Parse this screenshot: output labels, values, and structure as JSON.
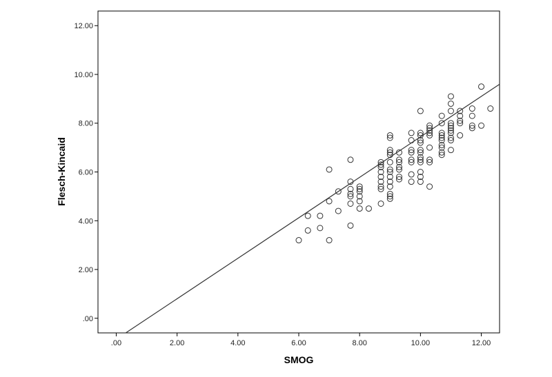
{
  "chart_data": {
    "type": "scatter",
    "title": "",
    "xlabel": "SMOG",
    "ylabel": "Flesch-Kincaid",
    "xlim": [
      -0.6,
      12.6
    ],
    "ylim": [
      -0.6,
      12.6
    ],
    "x_ticks": [
      {
        "value": 0,
        "label": ".00"
      },
      {
        "value": 2,
        "label": "2.00"
      },
      {
        "value": 4,
        "label": "4.00"
      },
      {
        "value": 6,
        "label": "6.00"
      },
      {
        "value": 8,
        "label": "8.00"
      },
      {
        "value": 10,
        "label": "10.00"
      },
      {
        "value": 12,
        "label": "12.00"
      }
    ],
    "y_ticks": [
      {
        "value": 0,
        "label": ".00"
      },
      {
        "value": 2,
        "label": "2.00"
      },
      {
        "value": 4,
        "label": "4.00"
      },
      {
        "value": 6,
        "label": "6.00"
      },
      {
        "value": 8,
        "label": "8.00"
      },
      {
        "value": 10,
        "label": "10.00"
      },
      {
        "value": 12,
        "label": "12.00"
      }
    ],
    "grid": false,
    "legend": "none",
    "colors": {
      "marker": "#333333",
      "line": "#333333",
      "frame": "#000000"
    },
    "fit_line": {
      "slope": 0.83,
      "intercept": -0.86
    },
    "points": [
      [
        6.0,
        3.2
      ],
      [
        6.3,
        3.6
      ],
      [
        6.3,
        4.2
      ],
      [
        6.7,
        3.7
      ],
      [
        6.7,
        4.2
      ],
      [
        7.0,
        3.2
      ],
      [
        7.0,
        4.8
      ],
      [
        7.0,
        6.1
      ],
      [
        7.3,
        4.4
      ],
      [
        7.3,
        5.2
      ],
      [
        7.7,
        3.8
      ],
      [
        7.7,
        4.7
      ],
      [
        7.7,
        5.0
      ],
      [
        7.7,
        5.1
      ],
      [
        7.7,
        5.3
      ],
      [
        7.7,
        5.6
      ],
      [
        7.7,
        6.5
      ],
      [
        8.0,
        4.5
      ],
      [
        8.0,
        4.8
      ],
      [
        8.0,
        5.0
      ],
      [
        8.0,
        5.2
      ],
      [
        8.0,
        5.3
      ],
      [
        8.0,
        5.4
      ],
      [
        8.3,
        4.5
      ],
      [
        8.7,
        4.7
      ],
      [
        8.7,
        5.3
      ],
      [
        8.7,
        5.4
      ],
      [
        8.7,
        5.6
      ],
      [
        8.7,
        5.8
      ],
      [
        8.7,
        6.0
      ],
      [
        8.7,
        6.2
      ],
      [
        8.7,
        6.3
      ],
      [
        8.7,
        6.4
      ],
      [
        9.0,
        4.9
      ],
      [
        9.0,
        5.0
      ],
      [
        9.0,
        5.1
      ],
      [
        9.0,
        5.4
      ],
      [
        9.0,
        5.6
      ],
      [
        9.0,
        5.8
      ],
      [
        9.0,
        6.0
      ],
      [
        9.0,
        6.1
      ],
      [
        9.0,
        6.4
      ],
      [
        9.0,
        6.7
      ],
      [
        9.0,
        6.8
      ],
      [
        9.0,
        6.9
      ],
      [
        9.0,
        7.4
      ],
      [
        9.0,
        7.5
      ],
      [
        9.3,
        5.7
      ],
      [
        9.3,
        5.8
      ],
      [
        9.3,
        6.1
      ],
      [
        9.3,
        6.2
      ],
      [
        9.3,
        6.4
      ],
      [
        9.3,
        6.5
      ],
      [
        9.3,
        6.8
      ],
      [
        9.7,
        5.6
      ],
      [
        9.7,
        5.9
      ],
      [
        9.7,
        6.4
      ],
      [
        9.7,
        6.5
      ],
      [
        9.7,
        6.8
      ],
      [
        9.7,
        6.9
      ],
      [
        9.7,
        7.3
      ],
      [
        9.7,
        7.6
      ],
      [
        10.0,
        5.6
      ],
      [
        10.0,
        5.8
      ],
      [
        10.0,
        6.0
      ],
      [
        10.0,
        6.4
      ],
      [
        10.0,
        6.5
      ],
      [
        10.0,
        6.6
      ],
      [
        10.0,
        6.8
      ],
      [
        10.0,
        6.9
      ],
      [
        10.0,
        7.2
      ],
      [
        10.0,
        7.3
      ],
      [
        10.0,
        7.5
      ],
      [
        10.0,
        7.6
      ],
      [
        10.0,
        8.5
      ],
      [
        10.3,
        5.4
      ],
      [
        10.3,
        6.4
      ],
      [
        10.3,
        6.5
      ],
      [
        10.3,
        7.0
      ],
      [
        10.3,
        7.5
      ],
      [
        10.3,
        7.6
      ],
      [
        10.3,
        7.7
      ],
      [
        10.3,
        7.8
      ],
      [
        10.3,
        7.9
      ],
      [
        10.7,
        6.7
      ],
      [
        10.7,
        6.8
      ],
      [
        10.7,
        7.0
      ],
      [
        10.7,
        7.1
      ],
      [
        10.7,
        7.3
      ],
      [
        10.7,
        7.4
      ],
      [
        10.7,
        7.5
      ],
      [
        10.7,
        7.6
      ],
      [
        10.7,
        8.0
      ],
      [
        10.7,
        8.3
      ],
      [
        11.0,
        6.9
      ],
      [
        11.0,
        7.3
      ],
      [
        11.0,
        7.4
      ],
      [
        11.0,
        7.6
      ],
      [
        11.0,
        7.7
      ],
      [
        11.0,
        7.8
      ],
      [
        11.0,
        7.9
      ],
      [
        11.0,
        8.0
      ],
      [
        11.0,
        8.5
      ],
      [
        11.0,
        8.8
      ],
      [
        11.0,
        9.1
      ],
      [
        11.3,
        7.5
      ],
      [
        11.3,
        8.0
      ],
      [
        11.3,
        8.1
      ],
      [
        11.3,
        8.3
      ],
      [
        11.3,
        8.5
      ],
      [
        11.7,
        7.8
      ],
      [
        11.7,
        7.9
      ],
      [
        11.7,
        8.3
      ],
      [
        11.7,
        8.6
      ],
      [
        12.0,
        7.9
      ],
      [
        12.0,
        9.5
      ],
      [
        12.3,
        8.6
      ]
    ]
  }
}
